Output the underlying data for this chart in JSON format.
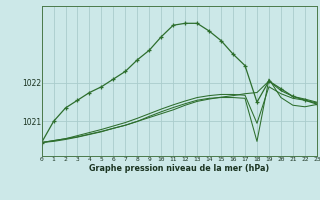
{
  "bg_color": "#cce8e8",
  "grid_color": "#aacccc",
  "line_color": "#2d6e2d",
  "marker_color": "#2d6e2d",
  "title": "Graphe pression niveau de la mer (hPa)",
  "xlim": [
    0,
    23
  ],
  "ylim": [
    1020.1,
    1024.0
  ],
  "hours": [
    0,
    1,
    2,
    3,
    4,
    5,
    6,
    7,
    8,
    9,
    10,
    11,
    12,
    13,
    14,
    15,
    16,
    17,
    18,
    19,
    20,
    21,
    22,
    23
  ],
  "series1": [
    1020.45,
    1021.0,
    1021.35,
    1021.55,
    1021.75,
    1021.9,
    1022.1,
    1022.3,
    1022.6,
    1022.85,
    1023.2,
    1023.5,
    1023.55,
    1023.55,
    1023.35,
    1023.1,
    1022.75,
    1022.45,
    1021.5,
    1022.05,
    1021.85,
    1021.65,
    1021.55,
    1021.45
  ],
  "series2": [
    1020.45,
    1020.5,
    1020.55,
    1020.6,
    1020.67,
    1020.74,
    1020.82,
    1020.9,
    1021.0,
    1021.1,
    1021.2,
    1021.3,
    1021.42,
    1021.52,
    1021.58,
    1021.63,
    1021.67,
    1021.72,
    1021.75,
    1022.05,
    1021.8,
    1021.65,
    1021.58,
    1021.5
  ],
  "series3": [
    1020.45,
    1020.5,
    1020.55,
    1020.63,
    1020.71,
    1020.79,
    1020.88,
    1020.97,
    1021.08,
    1021.2,
    1021.32,
    1021.43,
    1021.53,
    1021.62,
    1021.67,
    1021.7,
    1021.7,
    1021.68,
    1020.95,
    1021.9,
    1021.72,
    1021.6,
    1021.55,
    1021.48
  ],
  "series4": [
    1020.45,
    1020.48,
    1020.53,
    1020.59,
    1020.66,
    1020.73,
    1020.82,
    1020.9,
    1021.0,
    1021.13,
    1021.25,
    1021.36,
    1021.46,
    1021.55,
    1021.6,
    1021.62,
    1021.62,
    1021.6,
    1020.48,
    1022.1,
    1021.62,
    1021.42,
    1021.38,
    1021.44
  ]
}
